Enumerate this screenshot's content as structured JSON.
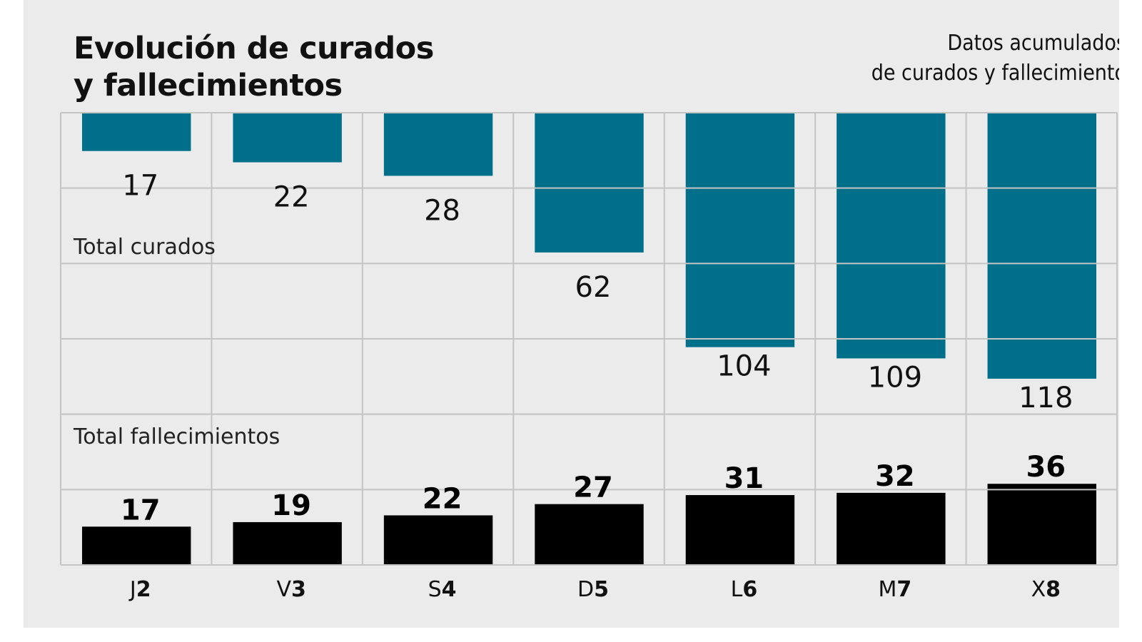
{
  "chart_data": {
    "type": "bar",
    "title": "Evolución de curados y fallecimientos",
    "title_lines": [
      "Evolución de curados",
      "y fallecimientos"
    ],
    "subtitle_lines": [
      "Datos acumulados",
      "de curados y fallecimiento"
    ],
    "categories": [
      {
        "day": "J",
        "num": "2"
      },
      {
        "day": "V",
        "num": "3"
      },
      {
        "day": "S",
        "num": "4"
      },
      {
        "day": "D",
        "num": "5"
      },
      {
        "day": "L",
        "num": "6"
      },
      {
        "day": "M",
        "num": "7"
      },
      {
        "day": "X",
        "num": "8"
      }
    ],
    "series": [
      {
        "name": "Total curados",
        "values": [
          17,
          22,
          28,
          62,
          104,
          109,
          118
        ],
        "color": "#006f8a",
        "direction": "down-from-top"
      },
      {
        "name": "Total fallecimientos",
        "values": [
          17,
          19,
          22,
          27,
          31,
          32,
          36
        ],
        "color": "#000000",
        "direction": "up-from-bottom"
      }
    ],
    "grid": true,
    "background": "#ebebeb",
    "grid_color": "#c4c4c4"
  }
}
